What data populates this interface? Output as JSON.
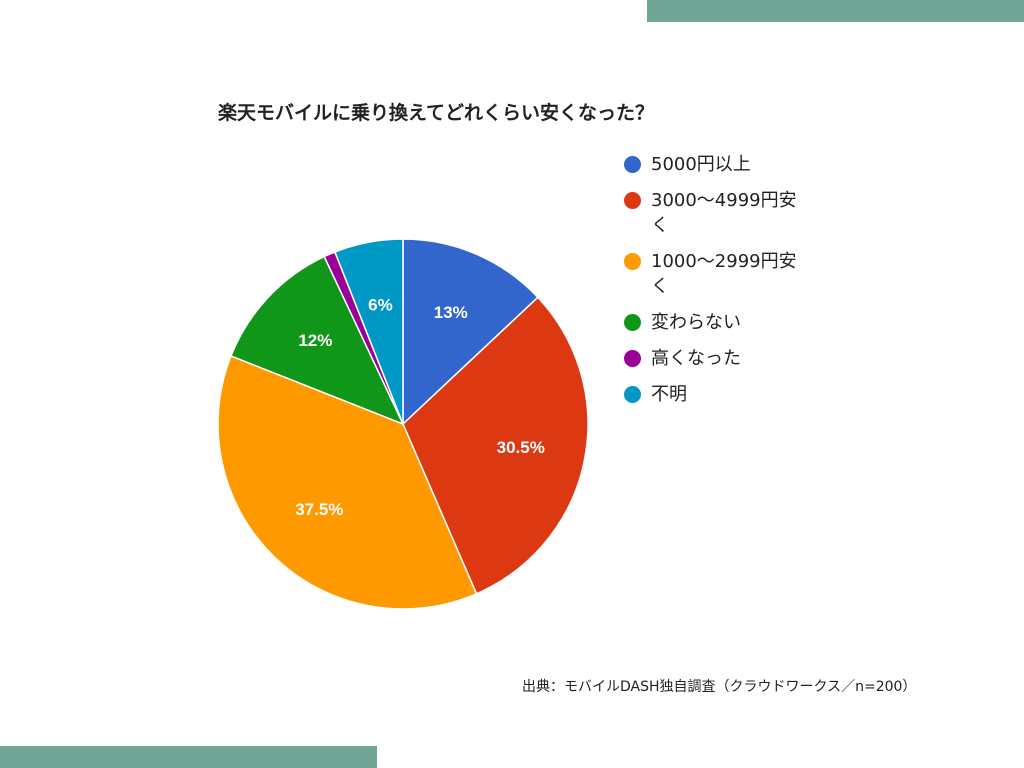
{
  "source_text": "出典：モバイルDASH独自調査（クラウドワークス／n=200）",
  "chart_data": {
    "type": "pie",
    "title": "楽天モバイルに乗り換えてどれくらい安くなった？",
    "legend_position": "right",
    "slices": [
      {
        "label": "5000円以上",
        "value": 13,
        "display": "13%",
        "color": "#3366cc"
      },
      {
        "label": "3000〜4999円安く",
        "value": 30.5,
        "display": "30.5%",
        "color": "#dc3912"
      },
      {
        "label": "1000〜2999円安く",
        "value": 37.5,
        "display": "37.5%",
        "color": "#ff9900"
      },
      {
        "label": "変わらない",
        "value": 12,
        "display": "12%",
        "color": "#109618"
      },
      {
        "label": "高くなった",
        "value": 1,
        "display": "",
        "color": "#990099"
      },
      {
        "label": "不明",
        "value": 6,
        "display": "6%",
        "color": "#0099c6"
      }
    ]
  }
}
